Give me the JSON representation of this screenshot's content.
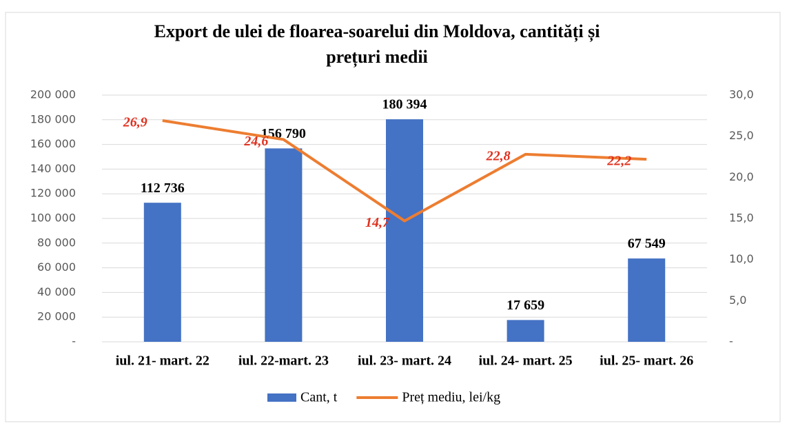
{
  "chart_data": {
    "type": "bar",
    "title": [
      "Export de ulei de floarea-soarelui  din  Moldova, cantități și",
      "prețuri medii"
    ],
    "categories": [
      "iul. 21- mart. 22",
      "iul. 22-mart.  23",
      "iul. 23- mart. 24",
      "iul. 24- mart. 25",
      "iul. 25- mart. 26"
    ],
    "series": [
      {
        "name": "Cant, t",
        "color": "#4472c4",
        "type": "bar",
        "values": [
          112736,
          156790,
          180394,
          17659,
          67549
        ],
        "value_labels": [
          "112 736",
          "156 790",
          "180 394",
          "17 659",
          "67 549"
        ]
      },
      {
        "name": "Preț mediu, lei/kg",
        "color": "#ed7d31",
        "type": "line",
        "axis": "y2",
        "values": [
          26.9,
          24.6,
          14.7,
          22.8,
          22.2
        ],
        "value_labels": [
          "26,9",
          "24,6",
          "14,7",
          "22,8",
          "22,2"
        ]
      }
    ],
    "ylim": [
      0,
      200000
    ],
    "yticks": [
      {
        "value": 0,
        "label": "-"
      },
      {
        "value": 20000,
        "label": "20 000"
      },
      {
        "value": 40000,
        "label": "40 000"
      },
      {
        "value": 60000,
        "label": "60 000"
      },
      {
        "value": 80000,
        "label": "80 000"
      },
      {
        "value": 100000,
        "label": "100 000"
      },
      {
        "value": 120000,
        "label": "120 000"
      },
      {
        "value": 140000,
        "label": "140 000"
      },
      {
        "value": 160000,
        "label": "160 000"
      },
      {
        "value": 180000,
        "label": "180 000"
      },
      {
        "value": 200000,
        "label": "200 000"
      }
    ],
    "y2lim": [
      0,
      30
    ],
    "y2ticks": [
      {
        "value": 0,
        "label": "-"
      },
      {
        "value": 5,
        "label": "5,0"
      },
      {
        "value": 10,
        "label": "10,0"
      },
      {
        "value": 15,
        "label": "15,0"
      },
      {
        "value": 20,
        "label": "20,0"
      },
      {
        "value": 25,
        "label": "25,0"
      },
      {
        "value": 30,
        "label": "30,0"
      }
    ],
    "grid": true,
    "legend": "bottom"
  }
}
